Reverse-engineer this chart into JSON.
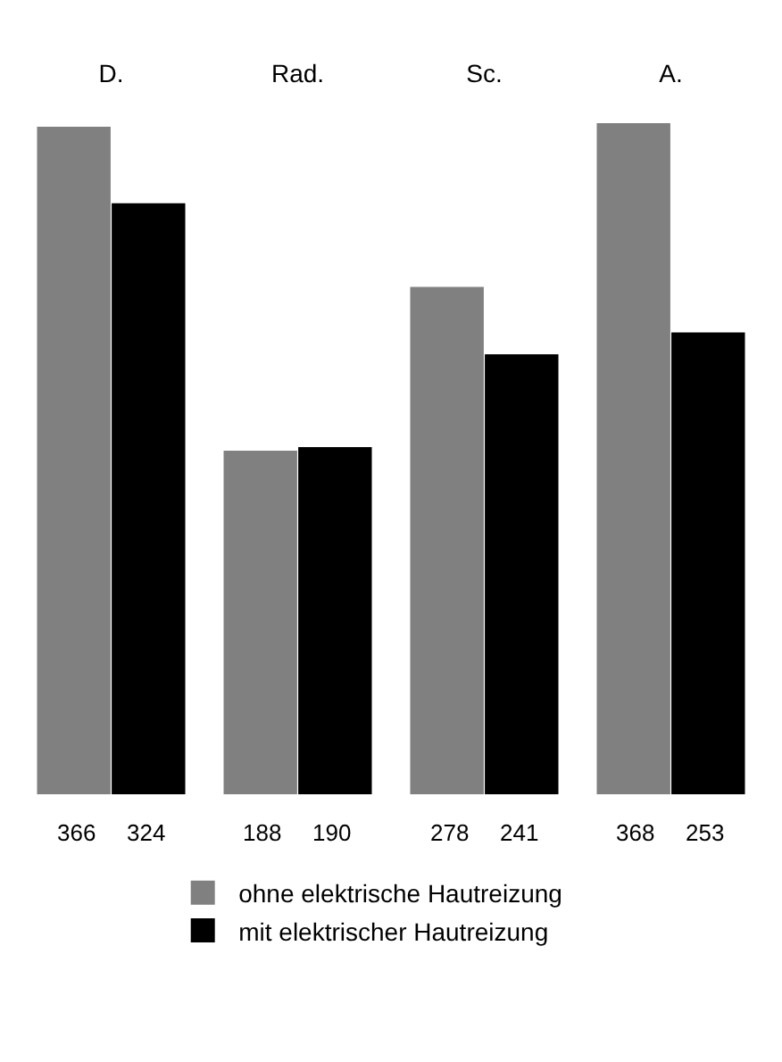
{
  "chart_data": {
    "type": "bar",
    "categories": [
      "D.",
      "Rad.",
      "Sc.",
      "A."
    ],
    "series": [
      {
        "name": "ohne elektrische Hautreizung",
        "color": "#808080",
        "values": [
          366,
          188,
          278,
          368
        ]
      },
      {
        "name": "mit elektrischer Hautreizung",
        "color": "#000000",
        "values": [
          324,
          190,
          241,
          253
        ]
      }
    ],
    "data_labels": true,
    "legend": "bottom"
  }
}
